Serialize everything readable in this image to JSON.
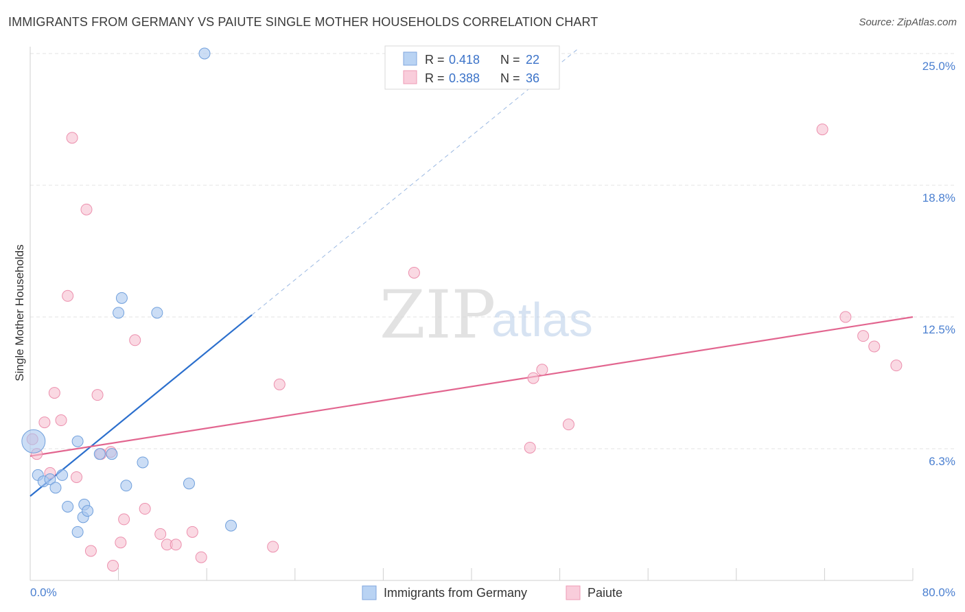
{
  "chart_data": {
    "type": "scatter",
    "title": "IMMIGRANTS FROM GERMANY VS PAIUTE SINGLE MOTHER HOUSEHOLDS CORRELATION CHART",
    "source": "Source: ZipAtlas.com",
    "xlabel": "",
    "ylabel": "Single Mother Households",
    "xlim": [
      0,
      80
    ],
    "ylim": [
      0,
      25
    ],
    "x_tick_labels": [
      "0.0%",
      "80.0%"
    ],
    "y_ticks": [
      {
        "value": 6.25,
        "label": "6.3%"
      },
      {
        "value": 12.5,
        "label": "12.5%"
      },
      {
        "value": 18.75,
        "label": "18.8%"
      },
      {
        "value": 25.0,
        "label": "25.0%"
      }
    ],
    "watermark": {
      "zip": "ZIP",
      "atlas": "atlas"
    },
    "legend_top": {
      "r_label": "R =",
      "n_label": "N =",
      "entries": [
        {
          "series": "Immigrants from Germany",
          "r": "0.418",
          "n": "22"
        },
        {
          "series": "Paiute",
          "r": "0.388",
          "n": "36"
        }
      ]
    },
    "series": [
      {
        "name": "Immigrants from Germany",
        "color": "#a9c7ef",
        "stroke": "#6f9fdc",
        "line_color": "#2b6fcd",
        "trend": {
          "x_start": 0,
          "y_start": 4.0,
          "x_end": 20.1,
          "y_end": 12.6,
          "dashed_to_x": 49.6,
          "dashed_to_y": 25.2
        },
        "points": [
          {
            "x": 0.3,
            "y": 6.6,
            "big": true
          },
          {
            "x": 0.7,
            "y": 5.0
          },
          {
            "x": 1.2,
            "y": 4.7
          },
          {
            "x": 1.8,
            "y": 4.8
          },
          {
            "x": 2.3,
            "y": 4.4
          },
          {
            "x": 2.9,
            "y": 5.0
          },
          {
            "x": 3.4,
            "y": 3.5
          },
          {
            "x": 4.8,
            "y": 3.0
          },
          {
            "x": 4.9,
            "y": 3.6
          },
          {
            "x": 5.2,
            "y": 3.3
          },
          {
            "x": 4.3,
            "y": 2.3
          },
          {
            "x": 4.3,
            "y": 6.6
          },
          {
            "x": 6.3,
            "y": 6.0
          },
          {
            "x": 7.4,
            "y": 6.0
          },
          {
            "x": 8.0,
            "y": 12.7
          },
          {
            "x": 8.3,
            "y": 13.4
          },
          {
            "x": 8.7,
            "y": 4.5
          },
          {
            "x": 10.2,
            "y": 5.6
          },
          {
            "x": 11.5,
            "y": 12.7
          },
          {
            "x": 14.4,
            "y": 4.6
          },
          {
            "x": 18.2,
            "y": 2.6
          },
          {
            "x": 15.8,
            "y": 25.0
          }
        ]
      },
      {
        "name": "Paiute",
        "color": "#f7bfd0",
        "stroke": "#ec8fad",
        "line_color": "#e2658f",
        "trend": {
          "x_start": 0,
          "y_start": 5.9,
          "x_end": 80,
          "y_end": 12.5
        },
        "points": [
          {
            "x": 0.2,
            "y": 6.7
          },
          {
            "x": 0.6,
            "y": 6.0
          },
          {
            "x": 1.3,
            "y": 7.5
          },
          {
            "x": 1.8,
            "y": 5.1
          },
          {
            "x": 2.2,
            "y": 8.9
          },
          {
            "x": 2.8,
            "y": 7.6
          },
          {
            "x": 3.4,
            "y": 13.5
          },
          {
            "x": 3.8,
            "y": 21.0
          },
          {
            "x": 4.2,
            "y": 4.9
          },
          {
            "x": 5.1,
            "y": 17.6
          },
          {
            "x": 5.5,
            "y": 1.4
          },
          {
            "x": 6.1,
            "y": 8.8
          },
          {
            "x": 6.4,
            "y": 6.0
          },
          {
            "x": 7.3,
            "y": 6.1
          },
          {
            "x": 7.5,
            "y": 0.7
          },
          {
            "x": 8.2,
            "y": 1.8
          },
          {
            "x": 8.5,
            "y": 2.9
          },
          {
            "x": 9.5,
            "y": 11.4
          },
          {
            "x": 10.4,
            "y": 3.4
          },
          {
            "x": 11.8,
            "y": 2.2
          },
          {
            "x": 12.4,
            "y": 1.7
          },
          {
            "x": 13.2,
            "y": 1.7
          },
          {
            "x": 14.7,
            "y": 2.3
          },
          {
            "x": 15.5,
            "y": 1.1
          },
          {
            "x": 22.0,
            "y": 1.6
          },
          {
            "x": 22.6,
            "y": 9.3
          },
          {
            "x": 34.8,
            "y": 14.6
          },
          {
            "x": 45.3,
            "y": 6.3
          },
          {
            "x": 45.6,
            "y": 9.6
          },
          {
            "x": 46.4,
            "y": 10.0
          },
          {
            "x": 48.8,
            "y": 7.4
          },
          {
            "x": 71.8,
            "y": 21.4
          },
          {
            "x": 73.9,
            "y": 12.5
          },
          {
            "x": 75.5,
            "y": 11.6
          },
          {
            "x": 76.5,
            "y": 11.1
          },
          {
            "x": 78.5,
            "y": 10.2
          }
        ]
      }
    ],
    "legend_bottom": [
      "Immigrants from Germany",
      "Paiute"
    ]
  }
}
